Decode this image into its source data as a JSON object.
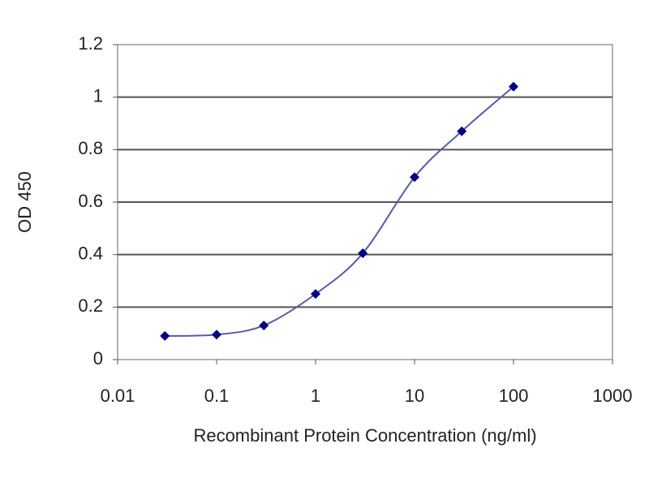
{
  "chart_data": {
    "type": "line",
    "x_label": "Recombinant Protein Concentration (ng/ml)",
    "y_label": "OD 450",
    "x": [
      0.03,
      0.1,
      0.3,
      1,
      3,
      10,
      30,
      100
    ],
    "values": [
      0.09,
      0.095,
      0.13,
      0.25,
      0.405,
      0.695,
      0.87,
      1.04
    ],
    "color": "#5a5aa8",
    "marker_color": "#000080",
    "xscale": "log",
    "xlim": [
      0.01,
      1000
    ],
    "xticks": [
      0.01,
      0.1,
      1,
      10,
      100,
      1000
    ],
    "ylim": [
      0,
      1.2
    ],
    "yticks": [
      0,
      0.2,
      0.4,
      0.6,
      0.8,
      1,
      1.2
    ],
    "grid": true
  }
}
